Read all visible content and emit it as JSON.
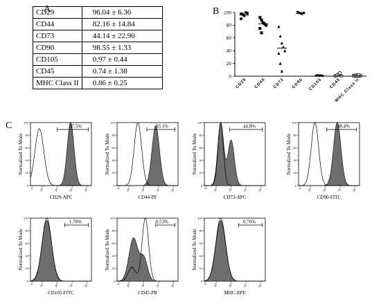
{
  "panel_letters": {
    "a": "A",
    "b": "B",
    "c": "C"
  },
  "chart_data": [
    {
      "type": "table",
      "panel": "A",
      "rows": [
        [
          "CD29",
          "96.04 ± 6.36"
        ],
        [
          "CD44",
          "82.16 ± 14.84"
        ],
        [
          "CD73",
          "44.14 ± 22.90"
        ],
        [
          "CD90",
          "98.55 ± 1.33"
        ],
        [
          "CD105",
          "0.97 ± 0.44"
        ],
        [
          "CD45",
          "0.74 ± 1.38"
        ],
        [
          "MHC Class II",
          "0.86 ± 0.25"
        ]
      ]
    },
    {
      "type": "scatter",
      "panel": "B",
      "categories": [
        "CD29",
        "CD44",
        "CD73",
        "CD90",
        "CD105",
        "CD45",
        "MHC Class II"
      ],
      "ylim": [
        0,
        100
      ],
      "yticks": [
        0,
        20,
        40,
        60,
        80,
        100
      ],
      "markers": [
        "circle",
        "square",
        "triangle",
        "triangle-down",
        "diamond",
        "circle-open",
        "square-open"
      ],
      "points": [
        [
          98,
          97,
          95,
          100,
          99,
          90,
          97
        ],
        [
          92,
          88,
          84,
          82,
          80,
          75,
          68
        ],
        [
          78,
          63,
          52,
          46,
          40,
          36,
          20,
          8
        ],
        [
          100,
          99,
          98,
          97,
          99
        ],
        [
          1,
          1.5,
          0.8,
          1.2,
          0.5,
          1
        ],
        [
          0.4,
          0.8,
          3,
          5,
          0.3,
          0.6,
          1.1
        ],
        [
          0.6,
          1,
          1.2,
          0.8,
          0.9,
          0.5,
          1.1,
          0.7,
          1.3
        ]
      ],
      "means": [
        96.04,
        82.16,
        44.14,
        98.55,
        0.97,
        0.74,
        0.86
      ]
    },
    {
      "type": "area",
      "panel": "C",
      "ylabel": "Normalized To Mode",
      "yticks": [
        0,
        20,
        40,
        60,
        80,
        100
      ],
      "xticks": [
        "0",
        "10²",
        "10³",
        "10⁴",
        "10⁵"
      ],
      "xlim_log10": [
        1.2,
        5.3
      ],
      "plots": [
        {
          "xlabel": "CD29-APC",
          "percent": "97.5%",
          "isotype": [
            [
              1.8,
              90,
              0.3
            ]
          ],
          "stained": [
            [
              3.9,
              100,
              0.23
            ]
          ],
          "gate_log10": [
            3.0,
            5.1
          ]
        },
        {
          "xlabel": "CD44-PE",
          "percent": "93.1%",
          "isotype": [
            [
              2.6,
              100,
              0.25
            ]
          ],
          "stained": [
            [
              3.8,
              95,
              0.25
            ]
          ],
          "gate_log10": [
            3.2,
            5.1
          ]
        },
        {
          "xlabel": "CD73-APC",
          "percent": "44.8%",
          "isotype": [
            [
              2.3,
              100,
              0.18
            ]
          ],
          "stained": [
            [
              2.3,
              100,
              0.2
            ],
            [
              3.0,
              72,
              0.22
            ]
          ],
          "gate_log10": [
            2.9,
            5.1
          ]
        },
        {
          "xlabel": "CD90-FITC",
          "percent": "98.4%",
          "isotype": [
            [
              2.3,
              100,
              0.25
            ]
          ],
          "stained": [
            [
              3.8,
              100,
              0.25
            ]
          ],
          "gate_log10": [
            3.1,
            5.1
          ]
        },
        {
          "xlabel": "CD105-FITC",
          "percent": "1.78%",
          "isotype": [
            [
              2.3,
              100,
              0.32
            ]
          ],
          "stained": [
            [
              2.3,
              96,
              0.33
            ]
          ],
          "gate_log10": [
            3.5,
            5.1
          ]
        },
        {
          "xlabel": "CD45-PB",
          "percent": "0.53%",
          "isotype": [
            [
              3.1,
              100,
              0.22
            ],
            [
              2.2,
              22,
              0.25
            ]
          ],
          "stained": [
            [
              2.3,
              68,
              0.3
            ],
            [
              3.0,
              36,
              0.25
            ]
          ],
          "gate_log10": [
            3.8,
            5.1
          ]
        },
        {
          "xlabel": "MHC-RPE",
          "percent": "0.76%",
          "isotype": [
            [
              2.3,
              100,
              0.33
            ]
          ],
          "stained": [
            [
              2.3,
              96,
              0.33
            ]
          ],
          "gate_log10": [
            3.5,
            5.1
          ]
        }
      ]
    }
  ]
}
